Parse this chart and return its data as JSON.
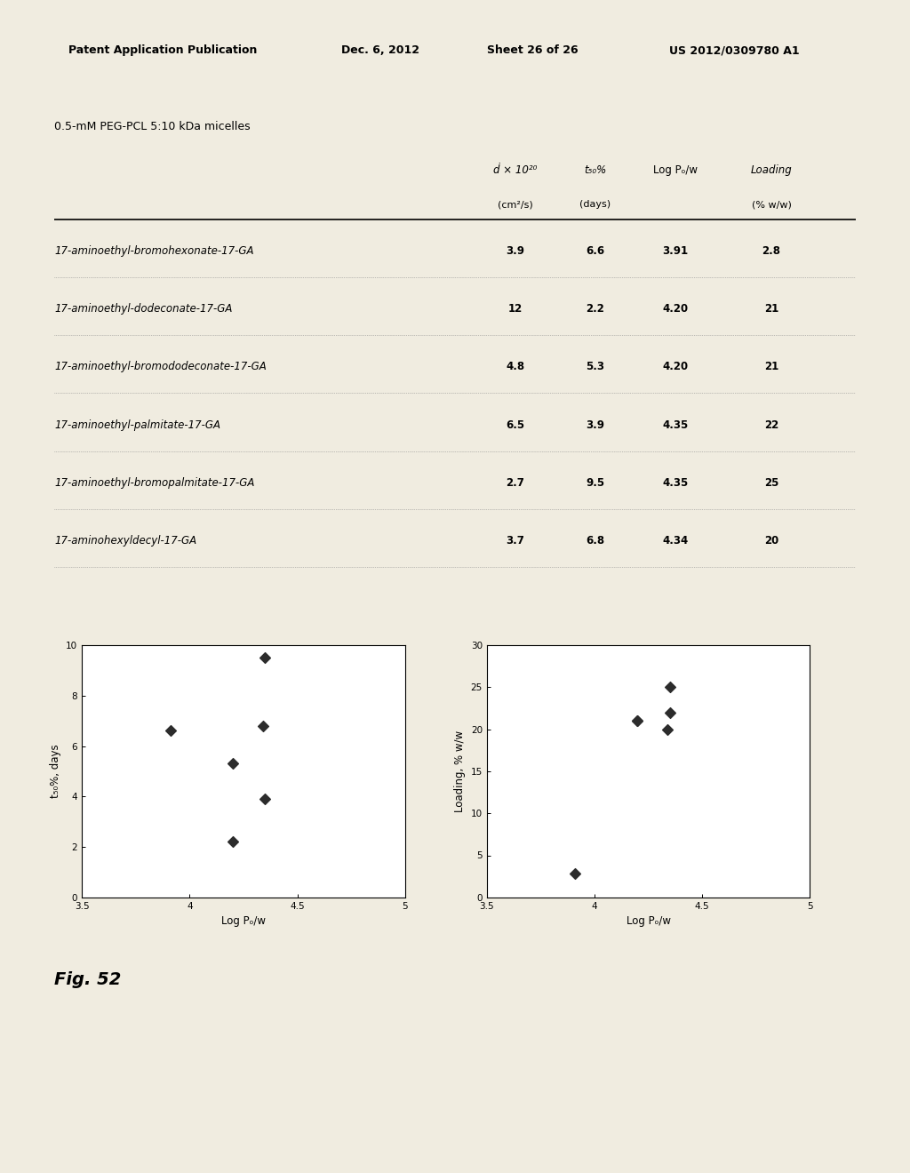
{
  "header_text": "Patent Application Publication",
  "header_date": "Dec. 6, 2012",
  "header_sheet": "Sheet 26 of 26",
  "header_patent": "US 2012/0309780 A1",
  "table_title": "0.5-mM PEG-PCL 5:10 kDa micelles",
  "rows": [
    [
      "17-aminoethyl-bromohexonate-17-GA",
      "3.9",
      "6.6",
      "3.91",
      "2.8"
    ],
    [
      "17-aminoethyl-dodeconate-17-GA",
      "12",
      "2.2",
      "4.20",
      "21"
    ],
    [
      "17-aminoethyl-bromododeconate-17-GA",
      "4.8",
      "5.3",
      "4.20",
      "21"
    ],
    [
      "17-aminoethyl-palmitate-17-GA",
      "6.5",
      "3.9",
      "4.35",
      "22"
    ],
    [
      "17-aminoethyl-bromopalmitate-17-GA",
      "2.7",
      "9.5",
      "4.35",
      "25"
    ],
    [
      "17-aminohexyldecyl-17-GA",
      "3.7",
      "6.8",
      "4.34",
      "20"
    ]
  ],
  "plot1": {
    "x": [
      3.91,
      4.2,
      4.2,
      4.35,
      4.35,
      4.34
    ],
    "y": [
      6.6,
      2.2,
      5.3,
      3.9,
      9.5,
      6.8
    ],
    "xlabel": "Log Pₒ/w",
    "ylabel": "t₅₀%, days",
    "xlim": [
      3.5,
      5.0
    ],
    "ylim": [
      0,
      10
    ],
    "xtick_vals": [
      3.5,
      4.0,
      4.5,
      5.0
    ],
    "xtick_labels": [
      "3.5",
      "4",
      "4.5",
      "5"
    ],
    "ytick_vals": [
      0,
      2,
      4,
      6,
      8,
      10
    ],
    "ytick_labels": [
      "0",
      "2",
      "4",
      "6",
      "8",
      "10"
    ]
  },
  "plot2": {
    "x": [
      3.91,
      4.2,
      4.2,
      4.35,
      4.35,
      4.34
    ],
    "y": [
      2.8,
      21,
      21,
      22,
      25,
      20
    ],
    "xlabel": "Log Pₒ/w",
    "ylabel": "Loading, % w/w",
    "xlim": [
      3.5,
      5.0
    ],
    "ylim": [
      0,
      30
    ],
    "xtick_vals": [
      3.5,
      4.0,
      4.5,
      5.0
    ],
    "xtick_labels": [
      "3.5",
      "4",
      "4.5",
      "5"
    ],
    "ytick_vals": [
      0,
      5,
      10,
      15,
      20,
      25,
      30
    ],
    "ytick_labels": [
      "0",
      "5",
      "10",
      "15",
      "20",
      "25",
      "30"
    ]
  },
  "fig_label": "Fig. 52",
  "marker_color": "#2c2c2c",
  "marker": "D",
  "marker_size": 6,
  "page_bg": "#f0ece0"
}
